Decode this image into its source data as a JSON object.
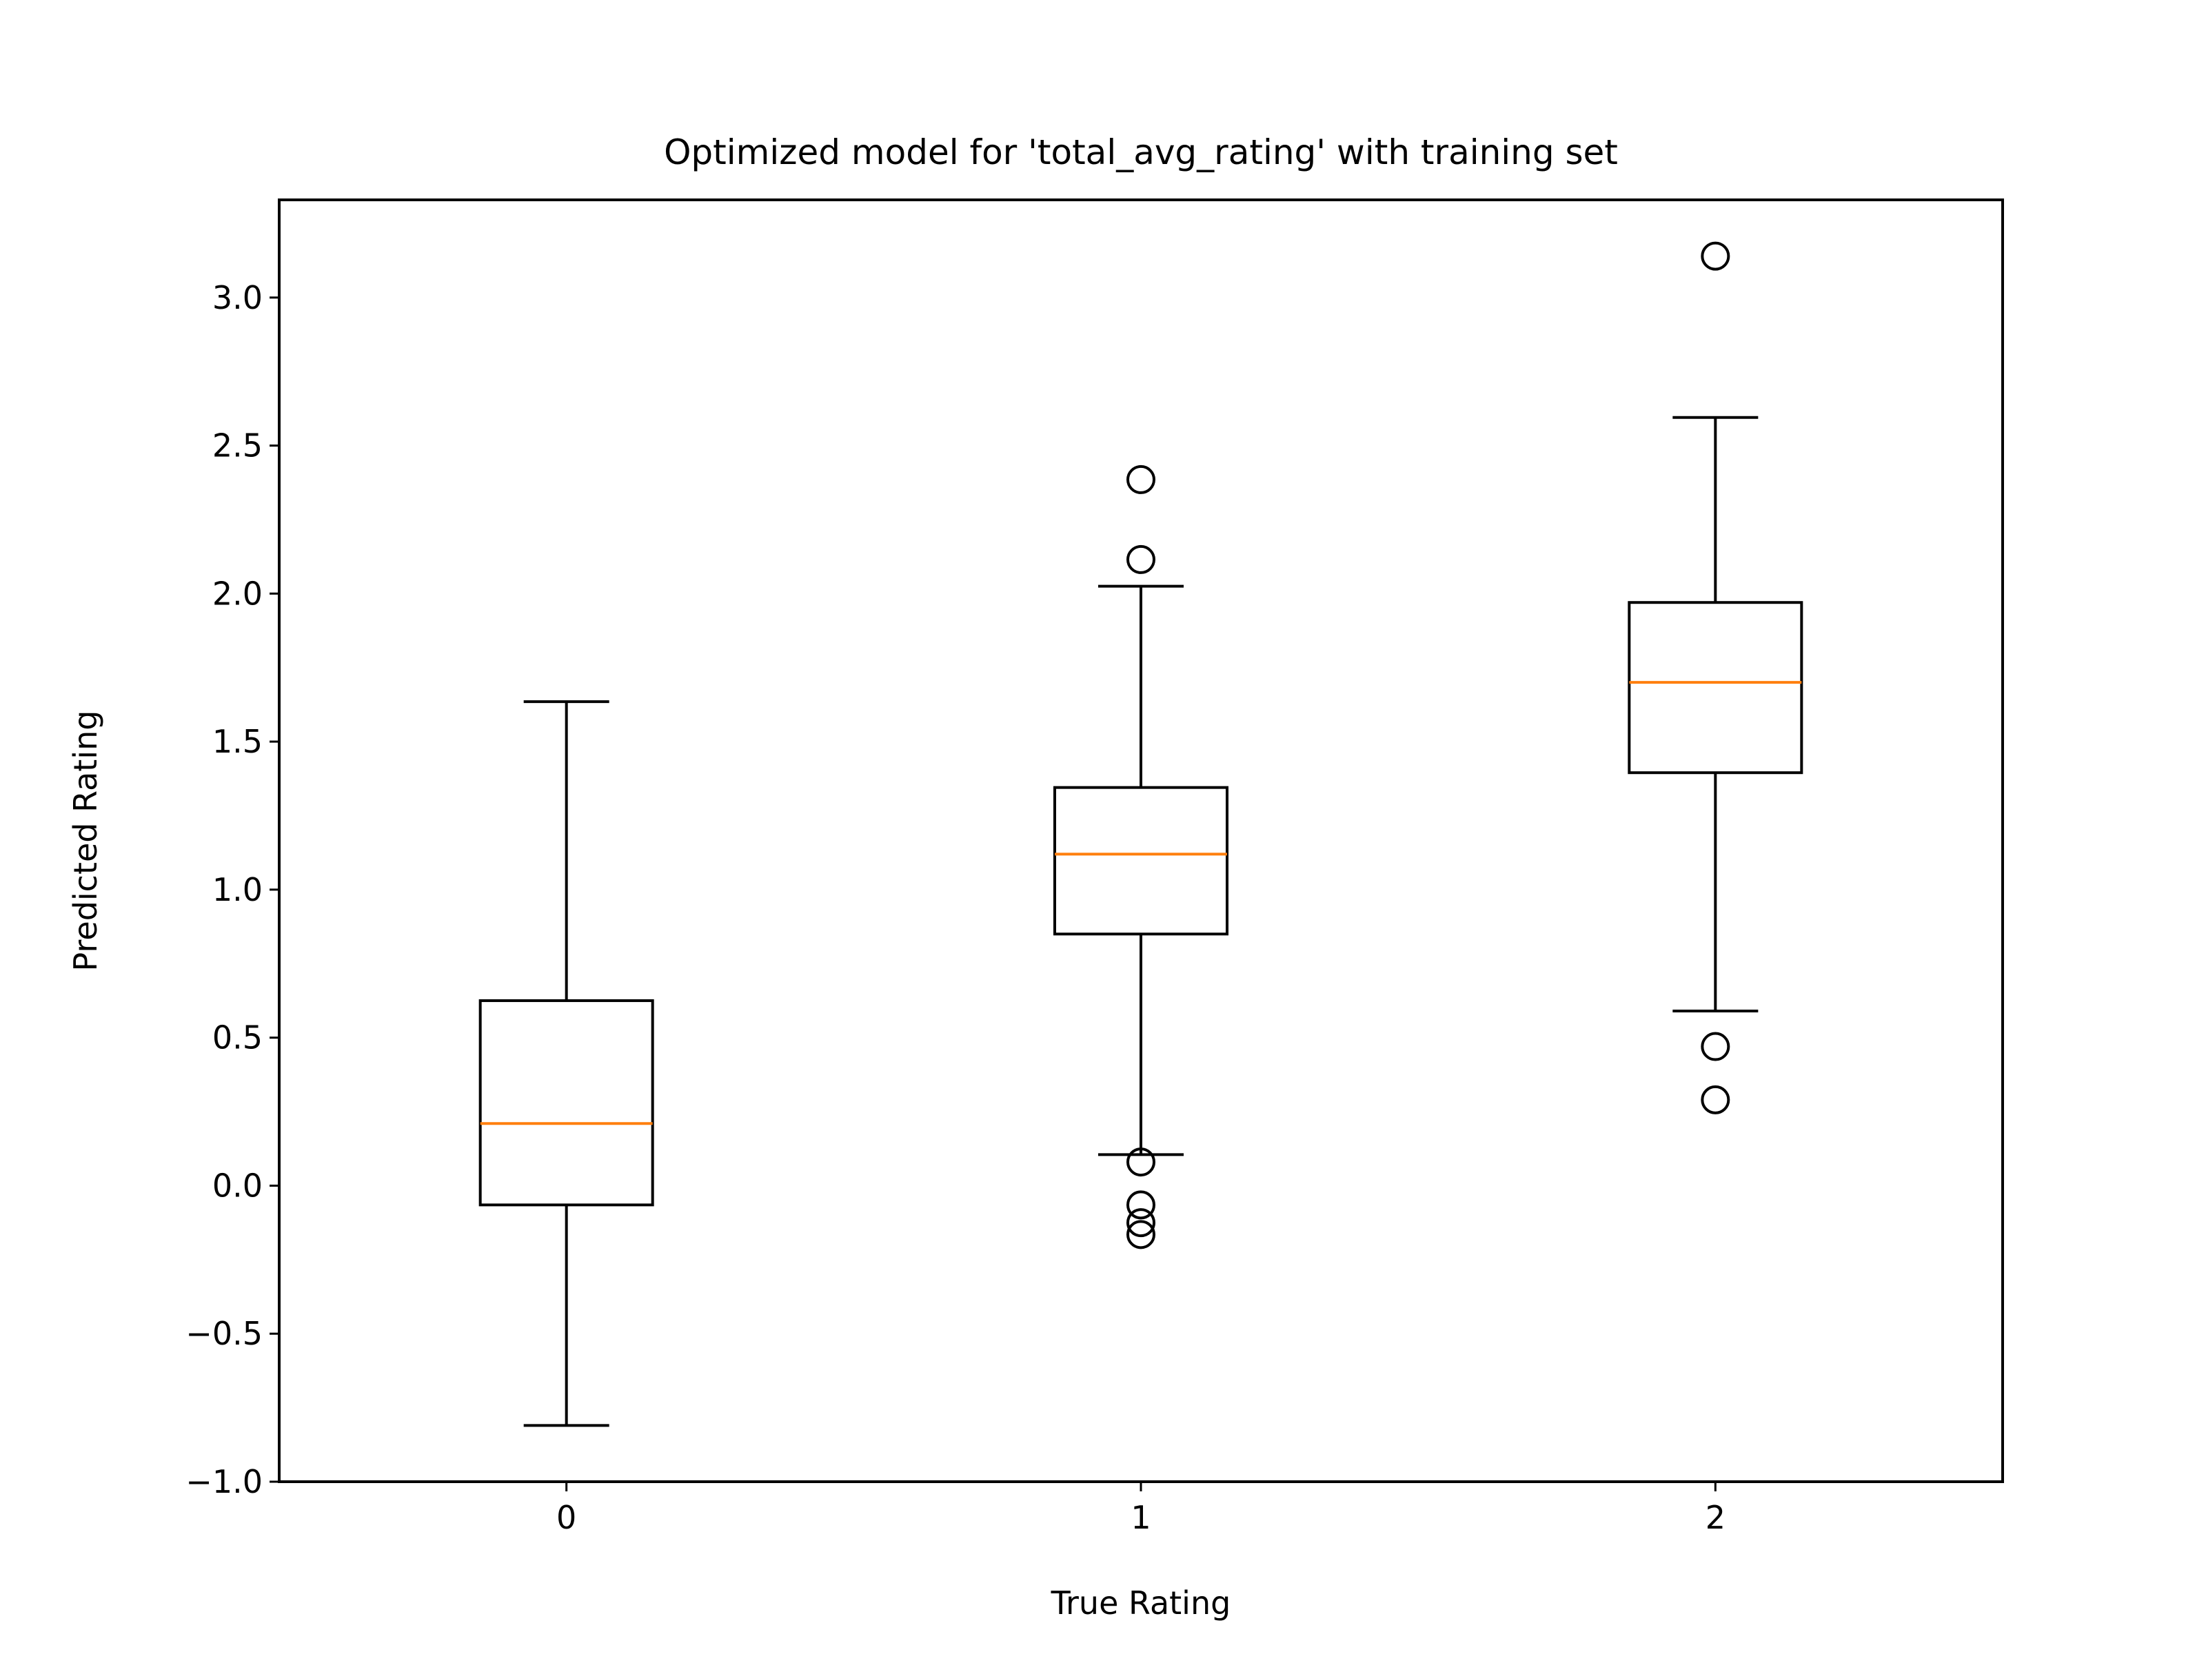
{
  "chart_data": {
    "type": "box",
    "title": "Optimized model for 'total_avg_rating' with training set",
    "xlabel": "True Rating",
    "ylabel": "Predicted Rating",
    "categories": [
      "0",
      "1",
      "2"
    ],
    "xlim": [
      -0.5,
      2.5
    ],
    "ylim": [
      -1.0,
      3.33
    ],
    "yticks": [
      -1.0,
      -0.5,
      0.0,
      0.5,
      1.0,
      1.5,
      2.0,
      2.5,
      3.0
    ],
    "ytick_labels": [
      "−1.0",
      "−0.5",
      "0.0",
      "0.5",
      "1.0",
      "1.5",
      "2.0",
      "2.5",
      "3.0"
    ],
    "grid": false,
    "legend": "none",
    "boxes": [
      {
        "category": "0",
        "whisker_low": -0.81,
        "q1": -0.065,
        "median": 0.21,
        "q3": 0.625,
        "whisker_high": 1.635,
        "outliers": []
      },
      {
        "category": "1",
        "whisker_low": 0.105,
        "q1": 0.85,
        "median": 1.12,
        "q3": 1.345,
        "whisker_high": 2.025,
        "outliers": [
          2.385,
          2.115,
          0.08,
          -0.065,
          -0.125,
          -0.165
        ]
      },
      {
        "category": "2",
        "whisker_low": 0.59,
        "q1": 1.395,
        "median": 1.7,
        "q3": 1.97,
        "whisker_high": 2.595,
        "outliers": [
          3.14,
          0.47,
          0.29
        ]
      }
    ],
    "colors": {
      "box": "#000000",
      "median": "#ff7f0e",
      "axes": "#000000",
      "background": "#ffffff"
    }
  }
}
